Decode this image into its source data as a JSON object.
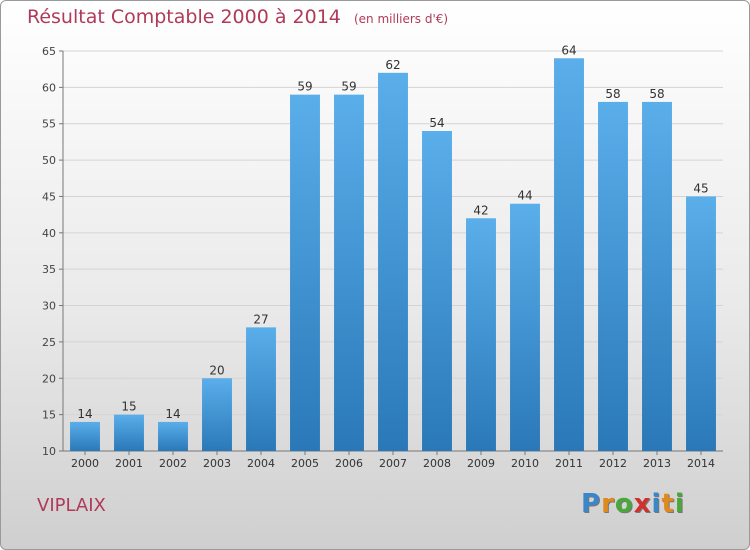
{
  "header": {
    "title": "Résultat Comptable 2000 à 2014",
    "unit": "(en milliers d'€)"
  },
  "footer": {
    "place": "VIPLAIX",
    "logo_text": "Proxiti"
  },
  "colors": {
    "bar_top": "#5aaeea",
    "bar_bottom": "#2a78b8",
    "title": "#b03a5a",
    "logo": [
      "#3a86c8",
      "#e08a1e",
      "#49a83a",
      "#d0312d",
      "#3a86c8",
      "#e08a1e",
      "#49a83a"
    ]
  },
  "chart_data": {
    "type": "bar",
    "title": "Résultat Comptable 2000 à 2014",
    "subtitle": "(en milliers d'€)",
    "categories": [
      "2000",
      "2001",
      "2002",
      "2003",
      "2004",
      "2005",
      "2006",
      "2007",
      "2008",
      "2009",
      "2010",
      "2011",
      "2012",
      "2013",
      "2014"
    ],
    "values": [
      14,
      15,
      14,
      20,
      27,
      59,
      59,
      62,
      54,
      42,
      44,
      64,
      58,
      58,
      45
    ],
    "ylim": [
      10,
      65
    ],
    "yticks": [
      10,
      15,
      20,
      25,
      30,
      35,
      40,
      45,
      50,
      55,
      60,
      65
    ],
    "grid": true,
    "xlabel": "",
    "ylabel": ""
  }
}
